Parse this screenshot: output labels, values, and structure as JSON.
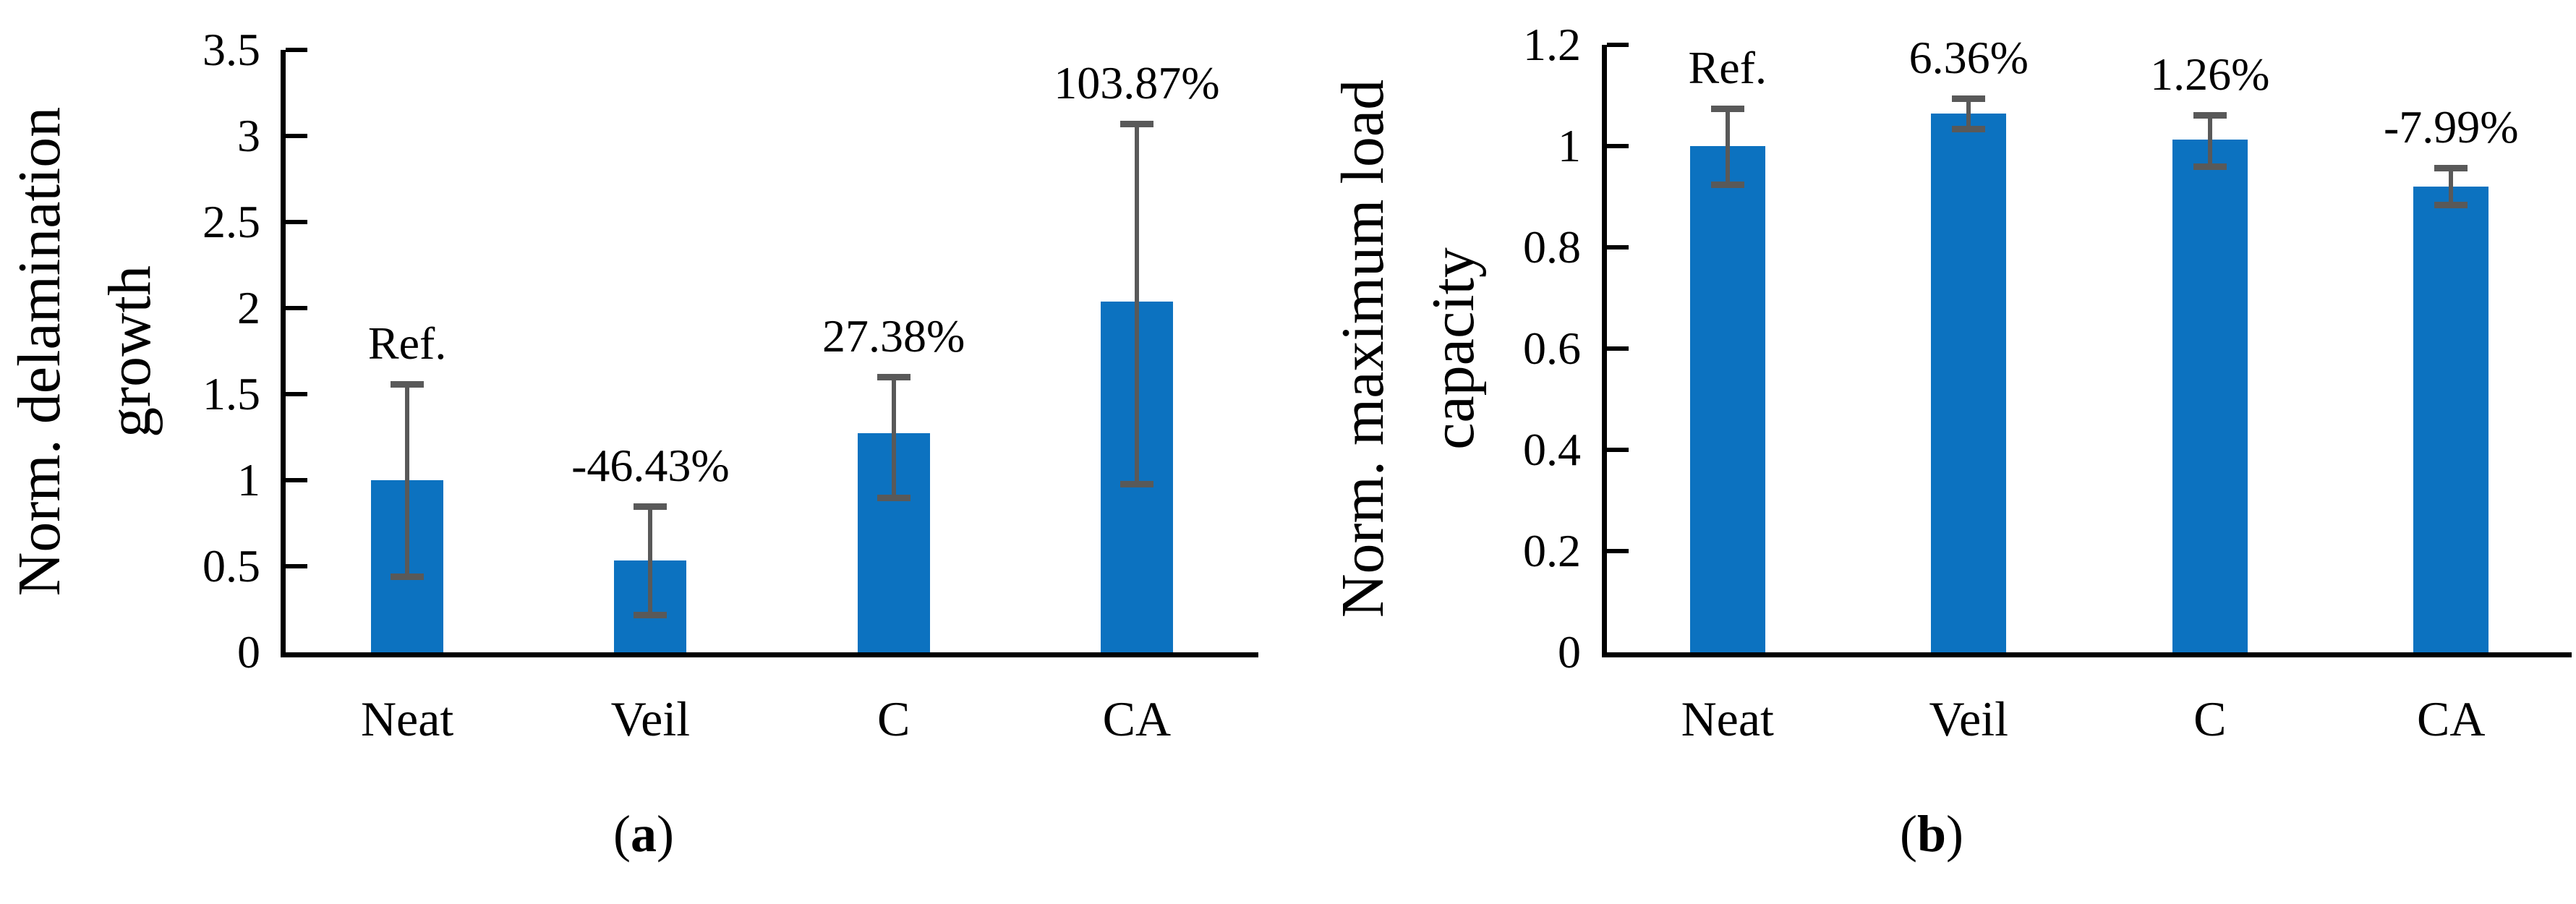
{
  "figure": {
    "background": "#ffffff",
    "axis_color": "#000000",
    "text_color": "#000000"
  },
  "chart_data": [
    {
      "type": "bar",
      "panel_label": {
        "open": "(",
        "letter": "a",
        "close": ")"
      },
      "title": "",
      "xlabel": "",
      "ylabel_lines": [
        "Norm. delamination",
        "growth"
      ],
      "categories": [
        "Neat",
        "Veil",
        "C",
        "CA"
      ],
      "values": [
        1.0,
        0.5357,
        1.2738,
        2.0387
      ],
      "bar_labels": [
        "Ref.",
        "-46.43%",
        "27.38%",
        "103.87%"
      ],
      "error_low": [
        0.44,
        0.22,
        0.9,
        0.98
      ],
      "error_high": [
        1.56,
        0.85,
        1.6,
        3.07
      ],
      "ylim": [
        0,
        3.5
      ],
      "yticks": [
        0,
        0.5,
        1,
        1.5,
        2,
        2.5,
        3,
        3.5
      ],
      "ytick_labels": [
        "0",
        "0.5",
        "1",
        "1.5",
        "2",
        "2.5",
        "3",
        "3.5"
      ],
      "grid": false,
      "legend": null,
      "bar_color": "#0c72c0",
      "error_color": "#595959"
    },
    {
      "type": "bar",
      "panel_label": {
        "open": "(",
        "letter": "b",
        "close": ")"
      },
      "title": "",
      "xlabel": "",
      "ylabel_lines": [
        "Norm. maximum load",
        "capacity"
      ],
      "categories": [
        "Neat",
        "Veil",
        "C",
        "CA"
      ],
      "values": [
        1.0,
        1.0636,
        1.0126,
        0.9201
      ],
      "bar_labels": [
        "Ref.",
        "6.36%",
        "1.26%",
        "-7.99%"
      ],
      "error_low": [
        0.925,
        1.035,
        0.96,
        0.885
      ],
      "error_high": [
        1.075,
        1.095,
        1.062,
        0.957
      ],
      "ylim": [
        0,
        1.2
      ],
      "yticks": [
        0,
        0.2,
        0.4,
        0.6,
        0.8,
        1,
        1.2
      ],
      "ytick_labels": [
        "0",
        "0.2",
        "0.4",
        "0.6",
        "0.8",
        "1",
        "1.2"
      ],
      "grid": false,
      "legend": null,
      "bar_color": "#0c72c0",
      "error_color": "#595959"
    }
  ]
}
